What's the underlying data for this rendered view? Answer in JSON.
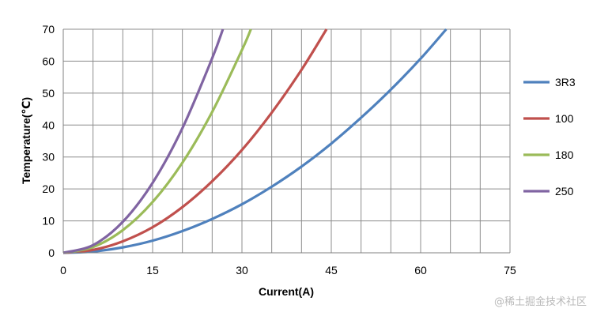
{
  "chart_data": {
    "type": "line",
    "title": "",
    "xlabel": "Current(A)",
    "ylabel": "Temperature(℃)",
    "xlim": [
      0,
      75
    ],
    "ylim": [
      0,
      70
    ],
    "xticks": [
      0,
      15,
      30,
      45,
      60,
      75
    ],
    "yticks": [
      0,
      10,
      20,
      30,
      40,
      50,
      60,
      70
    ],
    "x_minor_step": 5,
    "grid": true,
    "legend_position": "right",
    "series": [
      {
        "name": "3R3",
        "color": "#4F81BD",
        "x": [
          0,
          5,
          10,
          15,
          20,
          25,
          30,
          35,
          40,
          45,
          50,
          55,
          60,
          64.3
        ],
        "y": [
          0,
          0.4,
          1.7,
          3.8,
          6.8,
          10.6,
          15.2,
          20.7,
          27.0,
          34.2,
          42.3,
          51.1,
          60.8,
          70
        ]
      },
      {
        "name": "100",
        "color": "#C0504D",
        "x": [
          0,
          5,
          10,
          15,
          20,
          25,
          30,
          35,
          40,
          44.2
        ],
        "y": [
          0,
          0.9,
          3.6,
          8.0,
          14.3,
          22.4,
          32.2,
          43.9,
          57.3,
          70
        ]
      },
      {
        "name": "180",
        "color": "#9BBB59",
        "x": [
          0,
          5,
          10,
          15,
          20,
          25,
          30,
          31.5
        ],
        "y": [
          0,
          1.8,
          7.1,
          15.9,
          28.2,
          44.1,
          63.5,
          70
        ]
      },
      {
        "name": "250",
        "color": "#8064A2",
        "x": [
          0,
          5,
          10,
          15,
          20,
          25,
          26.8
        ],
        "y": [
          0,
          2.4,
          9.7,
          21.9,
          39.0,
          60.9,
          70
        ]
      }
    ]
  },
  "watermark": "@稀土掘金技术社区"
}
